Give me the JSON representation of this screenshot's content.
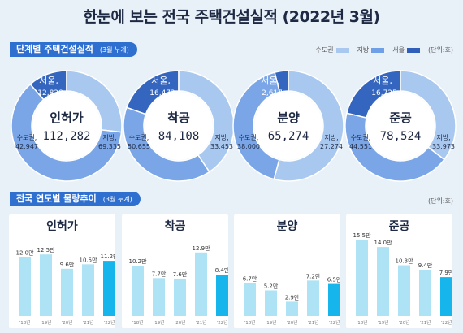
{
  "title": "한눈에 보는 전국 주택건설실적 (2022년 3월)",
  "sections": {
    "stage": {
      "label": "단계별 주택건설실적",
      "sub": "(3월 누계)"
    },
    "trend": {
      "label": "전국 연도별 물량추이",
      "sub": "(3월 누계)"
    }
  },
  "legend": [
    {
      "label": "수도권",
      "color": "#a9c8ef"
    },
    {
      "label": "지방",
      "color": "#6f9fe6"
    },
    {
      "label": "서울",
      "color": "#2f5fb8"
    }
  ],
  "unit_label": "(단위:호)",
  "colors": {
    "metro": "#a9c8ef",
    "local": "#7aa6e8",
    "seoul": "#3466c0",
    "bar": "#aee3f5",
    "bar_current": "#16b6ec"
  },
  "chart_data": [
    {
      "type": "pie",
      "title": "단계별 주택건설실적",
      "charts": [
        {
          "title": "인허가",
          "total": "112,282",
          "slices": [
            {
              "name": "서울",
              "label": "12,828",
              "value": 12828
            },
            {
              "name": "수도권",
              "label": "42,947",
              "value": 30119
            },
            {
              "name": "지방",
              "label": "69,335",
              "value": 69335
            }
          ]
        },
        {
          "title": "착공",
          "total": "84,108",
          "slices": [
            {
              "name": "서울",
              "label": "16,472",
              "value": 16472
            },
            {
              "name": "수도권",
              "label": "50,655",
              "value": 34183
            },
            {
              "name": "지방",
              "label": "33,453",
              "value": 33453
            }
          ]
        },
        {
          "title": "분양",
          "total": "65,274",
          "slices": [
            {
              "name": "서울",
              "label": "2,617",
              "value": 2617
            },
            {
              "name": "수도권",
              "label": "38,000",
              "value": 35383
            },
            {
              "name": "지방",
              "label": "27,274",
              "value": 27274
            }
          ]
        },
        {
          "title": "준공",
          "total": "78,524",
          "slices": [
            {
              "name": "서울",
              "label": "16,725",
              "value": 16725
            },
            {
              "name": "수도권",
              "label": "44,551",
              "value": 27826
            },
            {
              "name": "지방",
              "label": "33,973",
              "value": 33973
            }
          ]
        }
      ]
    },
    {
      "type": "bar",
      "title": "전국 연도별 물량추이",
      "categories": [
        "'18년",
        "'19년",
        "'20년",
        "'21년",
        "'22년"
      ],
      "panels": [
        {
          "title": "인허가",
          "values": [
            12.0,
            12.5,
            9.6,
            10.5,
            11.2
          ],
          "labels": [
            "12.0만",
            "12.5만",
            "9.6만",
            "10.5만",
            "11.2만"
          ]
        },
        {
          "title": "착공",
          "values": [
            10.2,
            7.7,
            7.6,
            12.9,
            8.4
          ],
          "labels": [
            "10.2만",
            "7.7만",
            "7.6만",
            "12.9만",
            "8.4만"
          ]
        },
        {
          "title": "분양",
          "values": [
            6.7,
            5.2,
            2.9,
            7.2,
            6.5
          ],
          "labels": [
            "6.7만",
            "5.2만",
            "2.9만",
            "7.2만",
            "6.5만"
          ]
        },
        {
          "title": "준공",
          "values": [
            15.5,
            14.0,
            10.3,
            9.4,
            7.9
          ],
          "labels": [
            "15.5만",
            "14.0만",
            "10.3만",
            "9.4만",
            "7.9만"
          ]
        }
      ]
    }
  ]
}
